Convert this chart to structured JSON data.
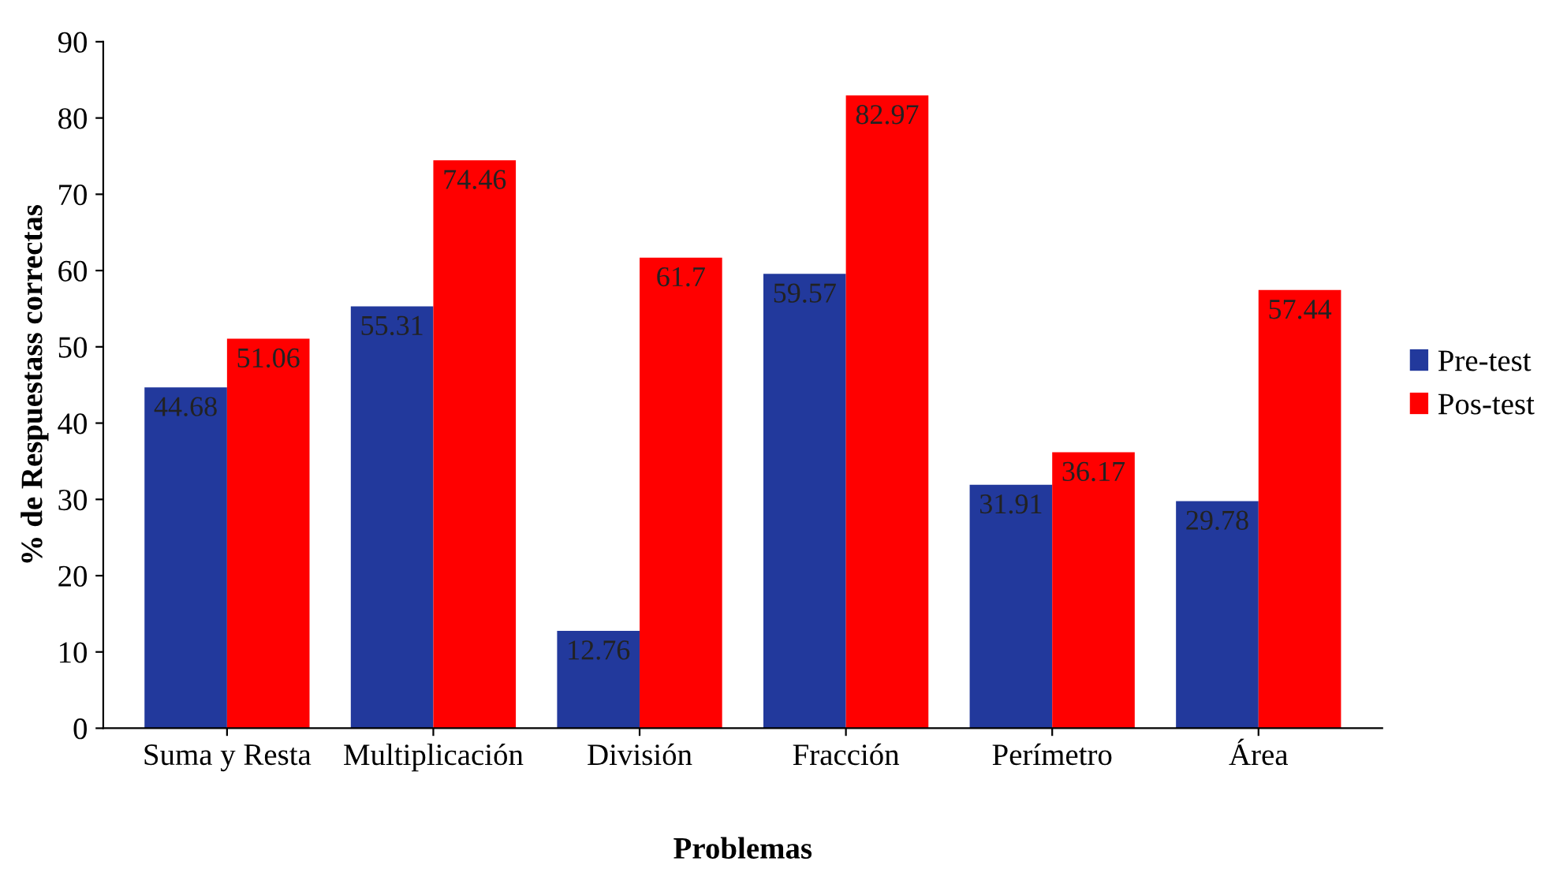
{
  "chart_data": {
    "type": "bar",
    "xlabel": "Problemas",
    "ylabel": "% de Respuestass correctas",
    "categories": [
      "Suma y Resta",
      "Multiplicación",
      "División",
      "Fracción",
      "Perímetro",
      "Área"
    ],
    "series": [
      {
        "name": "Pre-test",
        "color": "#22399c",
        "values": [
          44.68,
          55.31,
          12.76,
          59.57,
          31.91,
          29.78
        ]
      },
      {
        "name": "Pos-test",
        "color": "#ff0000",
        "values": [
          51.06,
          74.46,
          61.7,
          82.97,
          36.17,
          57.44
        ]
      }
    ],
    "ylim": [
      0,
      90
    ],
    "yticks": [
      0,
      10,
      20,
      30,
      40,
      50,
      60,
      70,
      80,
      90
    ],
    "grid": false,
    "legend": "right",
    "data_labels": true
  }
}
